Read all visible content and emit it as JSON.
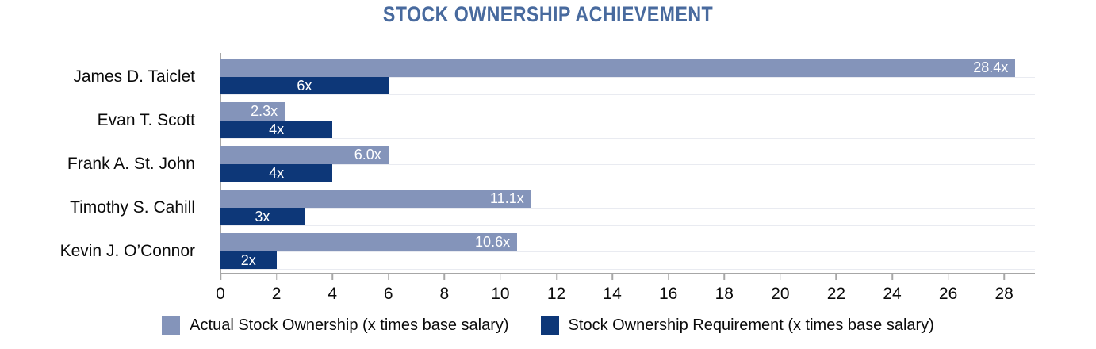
{
  "title": "STOCK OWNERSHIP ACHIEVEMENT",
  "colors": {
    "actual_series": "#8494BA",
    "requirement_series": "#0D3778",
    "title_text": "#486A9E",
    "axis_line": "#A7A7A7",
    "row_separator": "#E9EBF1",
    "value_label_text": "#FFFFFF"
  },
  "chart_data": {
    "type": "bar",
    "orientation": "horizontal",
    "title": "STOCK OWNERSHIP ACHIEVEMENT",
    "categories": [
      "James D. Taiclet",
      "Evan T. Scott",
      "Frank A. St. John",
      "Timothy S. Cahill",
      "Kevin J. O’Connor"
    ],
    "series": [
      {
        "name": "Actual Stock Ownership (x times base salary)",
        "values": [
          28.4,
          2.3,
          6.0,
          11.1,
          10.6
        ],
        "labels": [
          "28.4x",
          "2.3x",
          "6.0x",
          "11.1x",
          "10.6x"
        ],
        "color": "#8494BA",
        "label_position": "inside-end"
      },
      {
        "name": "Stock Ownership Requirement (x times base salary)",
        "values": [
          6,
          4,
          4,
          3,
          2
        ],
        "labels": [
          "6x",
          "4x",
          "4x",
          "3x",
          "2x"
        ],
        "color": "#0D3778",
        "label_position": "inside-center"
      }
    ],
    "xlabel": "",
    "ylabel": "",
    "xlim": [
      0,
      29.1
    ],
    "xticks": [
      0,
      2,
      4,
      6,
      8,
      10,
      12,
      14,
      16,
      18,
      20,
      22,
      24,
      26,
      28
    ],
    "grid": "row-separator-lines",
    "legend_position": "bottom-center"
  }
}
